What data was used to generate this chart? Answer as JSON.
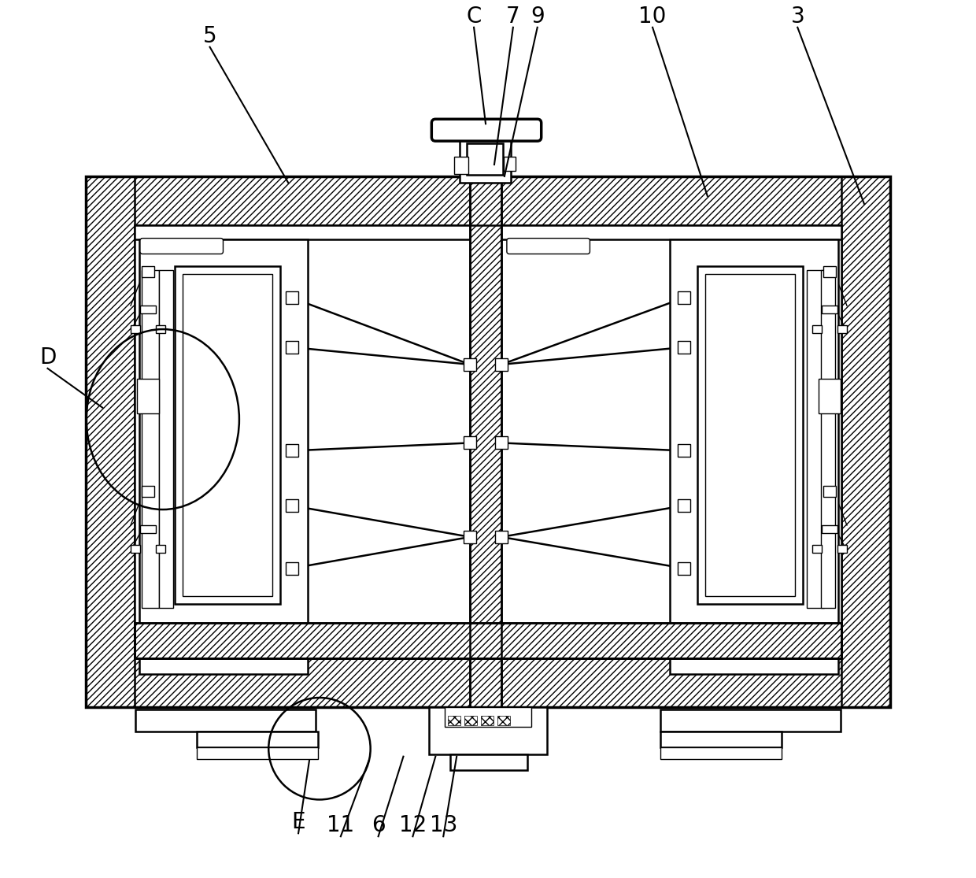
{
  "bg_color": "#ffffff",
  "lw_main": 1.8,
  "lw_thick": 2.5,
  "lw_thin": 1.0,
  "label_fontsize": 20,
  "fig_width": 12.4,
  "fig_height": 11.15,
  "leaders": [
    [
      "5",
      265,
      55,
      365,
      228
    ],
    [
      "C",
      602,
      30,
      617,
      153
    ],
    [
      "7",
      652,
      30,
      628,
      205
    ],
    [
      "9",
      683,
      30,
      641,
      220
    ],
    [
      "10",
      830,
      30,
      900,
      245
    ],
    [
      "3",
      1015,
      30,
      1100,
      255
    ],
    [
      "D",
      58,
      465,
      128,
      515
    ],
    [
      "E",
      378,
      1058,
      392,
      965
    ],
    [
      "11",
      432,
      1062,
      468,
      965
    ],
    [
      "6",
      480,
      1062,
      512,
      960
    ],
    [
      "12",
      524,
      1062,
      553,
      960
    ],
    [
      "13",
      563,
      1062,
      580,
      960
    ]
  ]
}
